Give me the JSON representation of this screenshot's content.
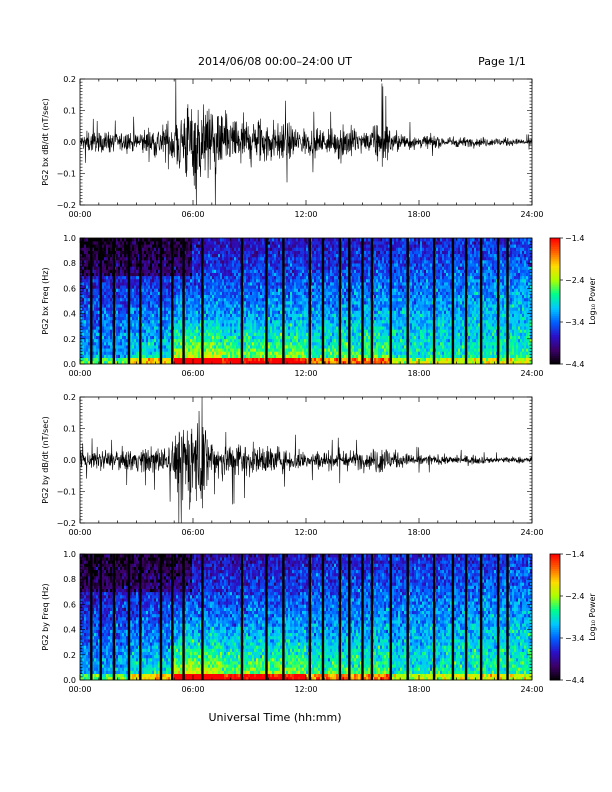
{
  "header": {
    "title": "2014/06/08  00:00–24:00 UT",
    "page": "Page 1/1"
  },
  "chart_data": [
    {
      "type": "line",
      "panel": "PG2 bx dB/dt",
      "ylabel": "PG2 bx dB/dt (nT/sec)",
      "xlim": [
        0,
        24
      ],
      "ylim": [
        -0.2,
        0.2
      ],
      "yticks": [
        -0.2,
        -0.1,
        0.0,
        0.1,
        0.2
      ],
      "ytick_labels": [
        "−0.2",
        "−0.1",
        "0.0",
        "0.1",
        "0.2"
      ],
      "xticks": [
        0,
        6,
        12,
        18,
        24
      ],
      "xtick_labels": [
        "00:00",
        "06:00",
        "12:00",
        "18:00",
        "24:00"
      ],
      "envelope": {
        "hours": [
          0,
          0.5,
          1,
          1.5,
          2,
          2.5,
          3,
          3.5,
          4,
          4.5,
          5,
          5.5,
          6,
          6.5,
          7,
          7.5,
          8,
          8.5,
          9,
          9.5,
          10,
          10.5,
          11,
          11.5,
          12,
          12.5,
          13,
          13.5,
          14,
          14.5,
          15,
          15.5,
          16,
          16.5,
          17,
          17.5,
          18,
          18.5,
          19,
          19.5,
          20,
          20.5,
          21,
          21.5,
          22,
          22.5,
          23,
          23.5,
          24
        ],
        "amplitude": [
          0.03,
          0.05,
          0.04,
          0.05,
          0.04,
          0.05,
          0.05,
          0.06,
          0.07,
          0.08,
          0.12,
          0.18,
          0.2,
          0.2,
          0.15,
          0.12,
          0.12,
          0.12,
          0.12,
          0.11,
          0.1,
          0.09,
          0.08,
          0.07,
          0.06,
          0.06,
          0.06,
          0.06,
          0.1,
          0.06,
          0.05,
          0.05,
          0.12,
          0.06,
          0.04,
          0.04,
          0.03,
          0.03,
          0.025,
          0.025,
          0.025,
          0.02,
          0.02,
          0.02,
          0.02,
          0.02,
          0.015,
          0.015,
          0.015
        ]
      }
    },
    {
      "type": "heatmap",
      "panel": "PG2 bx Freq",
      "ylabel": "PG2 bx Freq (Hz)",
      "xlim": [
        0,
        24
      ],
      "ylim": [
        0,
        1
      ],
      "yticks": [
        0.0,
        0.2,
        0.4,
        0.6,
        0.8,
        1.0
      ],
      "ytick_labels": [
        "0.0",
        "0.2",
        "0.4",
        "0.6",
        "0.8",
        "1.0"
      ],
      "xticks": [
        0,
        6,
        12,
        18,
        24
      ],
      "xtick_labels": [
        "00:00",
        "06:00",
        "12:00",
        "18:00",
        "24:00"
      ],
      "colorbar": {
        "label": "Log₁₀ Power",
        "range": [
          -4.4,
          -1.4
        ],
        "ticks": [
          -1.4,
          -2.4,
          -3.4,
          -4.4
        ],
        "tick_labels": [
          "−1.4",
          "−2.4",
          "−3.4",
          "−4.4"
        ],
        "colormap": [
          "#000000",
          "#3c0066",
          "#2a10c8",
          "#0060ff",
          "#00c8ff",
          "#00ff8c",
          "#aaff00",
          "#ffdc00",
          "#ff6400",
          "#ff0000"
        ]
      },
      "data_gaps_hours": [
        0.6,
        1.1,
        1.8,
        2.6,
        3.2,
        4.3,
        4.9,
        5.5,
        6.5,
        8.6,
        9.9,
        10.8,
        12.2,
        12.9,
        13.8,
        14.3,
        15.0,
        15.5,
        16.5,
        17.4,
        18.8,
        19.8,
        20.5,
        21.3,
        22.2,
        22.7
      ]
    },
    {
      "type": "line",
      "panel": "PG2 by dB/dt",
      "ylabel": "PG2 by dB/dt (nT/sec)",
      "xlim": [
        0,
        24
      ],
      "ylim": [
        -0.2,
        0.2
      ],
      "yticks": [
        -0.2,
        -0.1,
        0.0,
        0.1,
        0.2
      ],
      "ytick_labels": [
        "−0.2",
        "−0.1",
        "0.0",
        "0.1",
        "0.2"
      ],
      "xticks": [
        0,
        6,
        12,
        18,
        24
      ],
      "xtick_labels": [
        "00:00",
        "06:00",
        "12:00",
        "18:00",
        "24:00"
      ],
      "envelope": {
        "hours": [
          0,
          0.5,
          1,
          1.5,
          2,
          2.5,
          3,
          3.5,
          4,
          4.5,
          5,
          5.5,
          6,
          6.5,
          7,
          7.5,
          8,
          8.5,
          9,
          9.5,
          10,
          10.5,
          11,
          11.5,
          12,
          12.5,
          13,
          13.5,
          14,
          14.5,
          15,
          15.5,
          16,
          16.5,
          17,
          17.5,
          18,
          18.5,
          19,
          19.5,
          20,
          20.5,
          21,
          21.5,
          22,
          22.5,
          23,
          23.5,
          24
        ],
        "amplitude": [
          0.03,
          0.04,
          0.05,
          0.04,
          0.04,
          0.05,
          0.05,
          0.05,
          0.06,
          0.06,
          0.1,
          0.18,
          0.22,
          0.2,
          0.12,
          0.1,
          0.09,
          0.08,
          0.07,
          0.06,
          0.07,
          0.06,
          0.05,
          0.05,
          0.04,
          0.04,
          0.04,
          0.04,
          0.05,
          0.04,
          0.04,
          0.04,
          0.08,
          0.05,
          0.03,
          0.03,
          0.025,
          0.025,
          0.02,
          0.02,
          0.02,
          0.02,
          0.02,
          0.015,
          0.015,
          0.015,
          0.015,
          0.015,
          0.015
        ]
      }
    },
    {
      "type": "heatmap",
      "panel": "PG2 by Freq",
      "ylabel": "PG2 by Freq (Hz)",
      "xlim": [
        0,
        24
      ],
      "ylim": [
        0,
        1
      ],
      "yticks": [
        0.0,
        0.2,
        0.4,
        0.6,
        0.8,
        1.0
      ],
      "ytick_labels": [
        "0.0",
        "0.2",
        "0.4",
        "0.6",
        "0.8",
        "1.0"
      ],
      "xticks": [
        0,
        6,
        12,
        18,
        24
      ],
      "xtick_labels": [
        "00:00",
        "06:00",
        "12:00",
        "18:00",
        "24:00"
      ],
      "colorbar": {
        "label": "Log₁₀ Power",
        "range": [
          -4.4,
          -1.4
        ],
        "ticks": [
          -1.4,
          -2.4,
          -3.4,
          -4.4
        ],
        "tick_labels": [
          "−1.4",
          "−2.4",
          "−3.4",
          "−4.4"
        ],
        "colormap": [
          "#000000",
          "#3c0066",
          "#2a10c8",
          "#0060ff",
          "#00c8ff",
          "#00ff8c",
          "#aaff00",
          "#ffdc00",
          "#ff6400",
          "#ff0000"
        ]
      },
      "data_gaps_hours": [
        0.6,
        1.1,
        1.8,
        2.6,
        3.2,
        4.3,
        4.9,
        5.5,
        6.5,
        8.6,
        9.9,
        10.8,
        12.2,
        12.9,
        13.8,
        14.3,
        15.0,
        15.5,
        16.5,
        17.4,
        18.8,
        19.8,
        20.5,
        21.3,
        22.2,
        22.7
      ]
    }
  ],
  "xlabel": "Universal Time (hh:mm)"
}
